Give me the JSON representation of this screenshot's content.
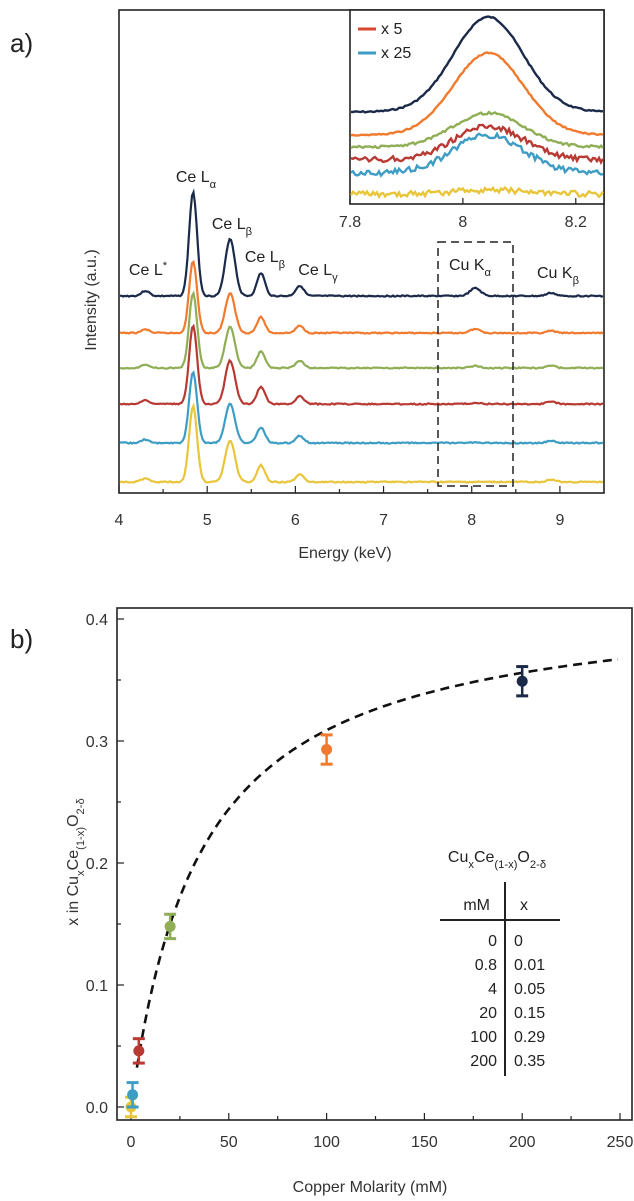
{
  "chart_data": [
    {
      "panel": "a)",
      "type": "line",
      "xlabel": "Energy (keV)",
      "ylabel": "Intensity (a.u.)",
      "xlim": [
        4,
        9.5
      ],
      "xticks": [
        "4",
        "5",
        "6",
        "7",
        "8",
        "9"
      ],
      "stacked_offset": true,
      "peaks": [
        {
          "label": "Ce L",
          "sub": "",
          "sup": "*",
          "energy": 4.3
        },
        {
          "label": "Ce L",
          "sub": "α",
          "sup": "",
          "energy": 4.84
        },
        {
          "label": "Ce L",
          "sub": "β",
          "sup": "",
          "energy": 5.26
        },
        {
          "label": "Ce L",
          "sub": "β",
          "sup": "",
          "energy": 5.61
        },
        {
          "label": "Ce L",
          "sub": "γ",
          "sup": "",
          "energy": 6.05
        },
        {
          "label": "Cu K",
          "sub": "α",
          "sup": "",
          "energy": 8.04
        },
        {
          "label": "Cu K",
          "sub": "β",
          "sup": "",
          "energy": 8.9
        }
      ],
      "series": [
        {
          "color": "#1c2a4a",
          "cu_ka_rel": 0.3
        },
        {
          "color": "#f07a2e",
          "cu_ka_rel": 0.22
        },
        {
          "color": "#8fae55",
          "cu_ka_rel": 0.11
        },
        {
          "color": "#b83a33",
          "cu_ka_rel": 0.05
        },
        {
          "color": "#3e9dc4",
          "cu_ka_rel": 0.02
        },
        {
          "color": "#e8c53a",
          "cu_ka_rel": 0.0
        }
      ],
      "inset": {
        "xlim": [
          7.8,
          8.25
        ],
        "xticks": [
          "7.8",
          "8",
          "8.2"
        ],
        "legend": [
          {
            "label": "x 5",
            "color": "#d9462f"
          },
          {
            "label": "x 25",
            "color": "#3e9dc4"
          }
        ]
      }
    },
    {
      "panel": "b)",
      "type": "scatter",
      "xlabel": "Copper Molarity (mM)",
      "ylabel_parts": [
        "x in Cu",
        "x",
        "Ce",
        "(1-x)",
        "O",
        "2-δ"
      ],
      "xlim": [
        0,
        250
      ],
      "ylim": [
        0,
        0.4
      ],
      "xticks": [
        "0",
        "50",
        "100",
        "150",
        "200",
        "250"
      ],
      "yticks": [
        "0.0",
        "0.1",
        "0.2",
        "0.3",
        "0.4"
      ],
      "points": [
        {
          "x": 0,
          "y": 0.0,
          "err": 0.008,
          "color": "#e8c53a"
        },
        {
          "x": 0.8,
          "y": 0.01,
          "err": 0.01,
          "color": "#3e9dc4"
        },
        {
          "x": 4,
          "y": 0.046,
          "err": 0.01,
          "color": "#b83a33"
        },
        {
          "x": 20,
          "y": 0.148,
          "err": 0.01,
          "color": "#8fae55"
        },
        {
          "x": 100,
          "y": 0.293,
          "err": 0.012,
          "color": "#f07a2e"
        },
        {
          "x": 200,
          "y": 0.349,
          "err": 0.012,
          "color": "#1c2a4a"
        }
      ],
      "fit": {
        "style": "dashed",
        "xmax_approx": 0.42,
        "k_mM": 36
      },
      "table": {
        "title_parts": [
          "Cu",
          "x",
          "Ce",
          "(1-x)",
          "O",
          "2-δ"
        ],
        "headers": [
          "mM",
          "x"
        ],
        "rows": [
          {
            "mM": "0",
            "x": "0",
            "color": "#e8c53a"
          },
          {
            "mM": "0.8",
            "x": "0.01",
            "color": "#3e9dc4"
          },
          {
            "mM": "4",
            "x": "0.05",
            "color": "#b83a33"
          },
          {
            "mM": "20",
            "x": "0.15",
            "color": "#8fae55"
          },
          {
            "mM": "100",
            "x": "0.29",
            "color": "#f07a2e"
          },
          {
            "mM": "200",
            "x": "0.35",
            "color": "#1c2a4a"
          }
        ]
      }
    }
  ]
}
